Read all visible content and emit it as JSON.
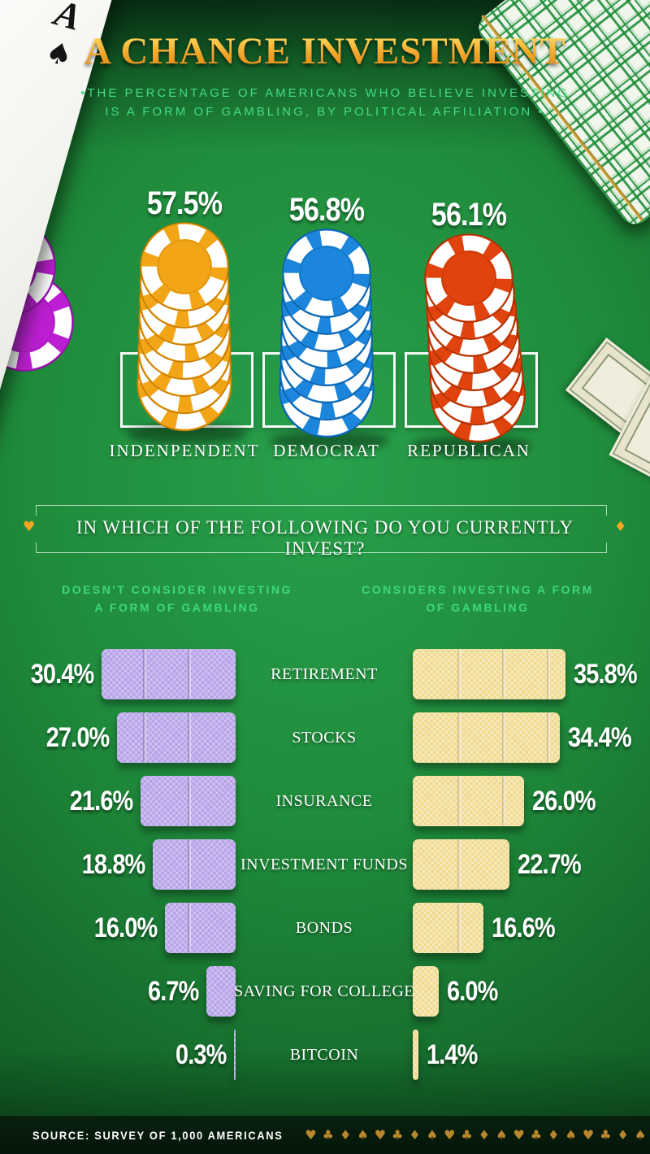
{
  "header": {
    "title": "A CHANCE INVESTMENT",
    "subtitle_line1": "•THE PERCENTAGE OF AMERICANS WHO BELIEVE INVESTING",
    "subtitle_line2": "IS A FORM OF GAMBLING, BY POLITICAL AFFILIATION •"
  },
  "ace_card": {
    "rank": "A",
    "suit": "♠"
  },
  "question_banner": {
    "text": "IN WHICH OF THE FOLLOWING DO YOU CURRENTLY INVEST?",
    "left_icon_glyph": "♥",
    "right_icon_glyph": "♦"
  },
  "columns": {
    "left_header_line1": "DOESN'T CONSIDER INVESTING",
    "left_header_line2": "A FORM OF GAMBLING",
    "right_header_line1": "CONSIDERS INVESTING A FORM",
    "right_header_line2": "OF GAMBLING"
  },
  "footer": {
    "source": "SOURCE: SURVEY OF 1,000 AMERICANS",
    "suits": "♥♣♦♠♥♣♦♠♥♣♦♠♥♣♦♠♥♣♦♠♥♣♦"
  },
  "colors": {
    "title_gold_top": "#FFD95A",
    "title_gold_bottom": "#D87F0F",
    "subtitle_green": "#44DB86",
    "column_header_green": "#3FD680",
    "left_bar": "#B7A3E8",
    "right_bar": "#F0DA8F",
    "suit_gold": "#B8872E",
    "accent_orange": "#F5A623",
    "decor_chip_purple": "#BC1FD2",
    "decor_chip_purple_dark": "#8A12A0",
    "chip_stack_colors": [
      "#F2A517",
      "#1B86DC",
      "#E0430D"
    ],
    "chip_stack_dark": [
      "#C67C02",
      "#0D5FA8",
      "#A93004"
    ]
  },
  "chart_data": [
    {
      "type": "bar",
      "title": "The percentage of Americans who believe investing is a form of gambling, by political affiliation",
      "categories": [
        "INDENPENDENT",
        "DEMOCRAT",
        "REPUBLICAN"
      ],
      "values": [
        57.5,
        56.8,
        56.1
      ],
      "value_labels": [
        "57.5%",
        "56.8%",
        "56.1%"
      ],
      "unit": "%"
    },
    {
      "type": "bar",
      "title": "IN WHICH OF THE FOLLOWING DO YOU CURRENTLY INVEST?",
      "orientation": "horizontal-paired",
      "categories": [
        "RETIREMENT",
        "STOCKS",
        "INSURANCE",
        "INVESTMENT FUNDS",
        "BONDS",
        "SAVING FOR COLLEGE",
        "BITCOIN"
      ],
      "series": [
        {
          "name": "DOESN'T CONSIDER INVESTING A FORM OF GAMBLING",
          "values": [
            30.4,
            27.0,
            21.6,
            18.8,
            16.0,
            6.7,
            0.3
          ]
        },
        {
          "name": "CONSIDERS INVESTING A FORM OF GAMBLING",
          "values": [
            35.8,
            34.4,
            26.0,
            22.7,
            16.6,
            6.0,
            1.4
          ]
        }
      ],
      "unit": "%"
    }
  ]
}
